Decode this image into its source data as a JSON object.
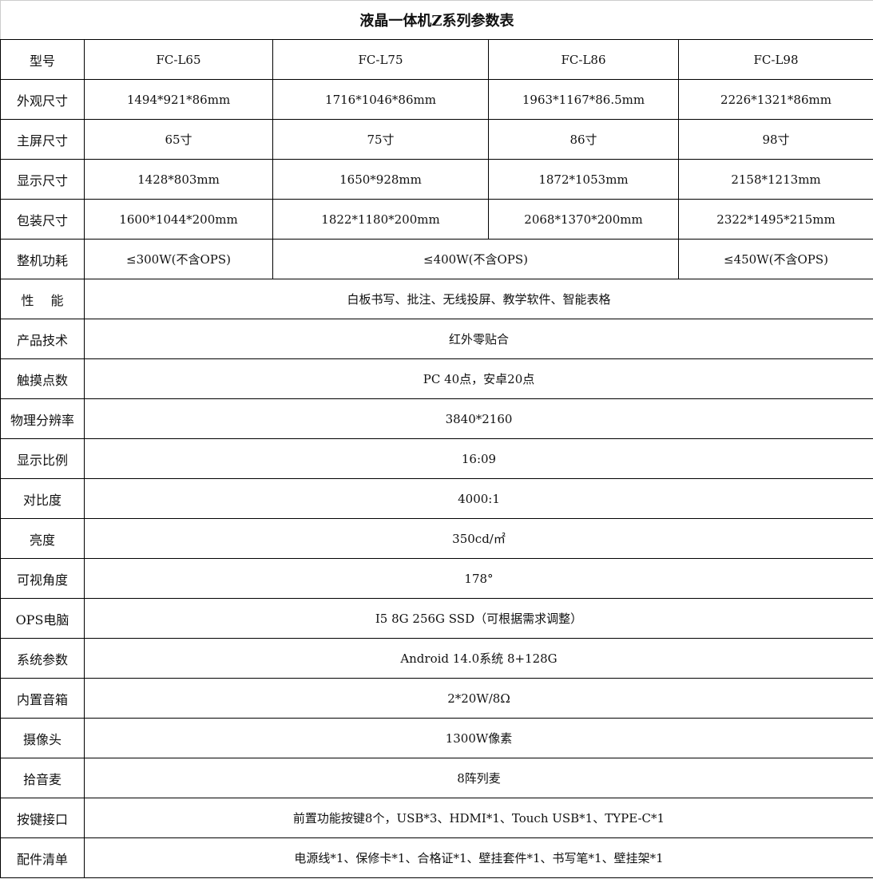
{
  "title": "液晶一体机Z系列参数表",
  "header": {
    "label": "型号",
    "models": [
      "FC-L65",
      "FC-L75",
      "FC-L86",
      "FC-L98"
    ]
  },
  "rows_by_model": [
    {
      "label": "外观尺寸",
      "values": [
        "1494*921*86mm",
        "1716*1046*86mm",
        "1963*1167*86.5mm",
        "2226*1321*86mm"
      ]
    },
    {
      "label": "主屏尺寸",
      "values": [
        "65寸",
        "75寸",
        "86寸",
        "98寸"
      ]
    },
    {
      "label": "显示尺寸",
      "values": [
        "1428*803mm",
        "1650*928mm",
        "1872*1053mm",
        "2158*1213mm"
      ]
    },
    {
      "label": "包装尺寸",
      "values": [
        "1600*1044*200mm",
        "1822*1180*200mm",
        "2068*1370*200mm",
        "2322*1495*215mm"
      ]
    }
  ],
  "power": {
    "label": "整机功耗",
    "l65": "≤300W(不含OPS)",
    "l75_l86": "≤400W(不含OPS)",
    "l98": "≤450W(不含OPS)"
  },
  "rows_shared": [
    {
      "label": "性　 能",
      "value": "白板书写、批注、无线投屏、教学软件、智能表格"
    },
    {
      "label": "产品技术",
      "value": "红外零贴合"
    },
    {
      "label": "触摸点数",
      "value": "PC 40点，安卓20点"
    },
    {
      "label": "物理分辨率",
      "value": "3840*2160"
    },
    {
      "label": "显示比例",
      "value": "16:09"
    },
    {
      "label": "对比度",
      "value": "4000:1"
    },
    {
      "label": "亮度",
      "value": "350cd/㎡"
    },
    {
      "label": "可视角度",
      "value": "178°"
    },
    {
      "label": "OPS电脑",
      "value": "I5 8G 256G SSD（可根据需求调整）"
    },
    {
      "label": "系统参数",
      "value": "Android 14.0系统 8+128G"
    },
    {
      "label": "内置音箱",
      "value": "2*20W/8Ω"
    },
    {
      "label": "摄像头",
      "value": "1300W像素"
    },
    {
      "label": "拾音麦",
      "value": "8阵列麦"
    },
    {
      "label": "按键接口",
      "value": "前置功能按键8个，USB*3、HDMI*1、Touch USB*1、TYPE-C*1"
    },
    {
      "label": "配件清单",
      "value": "电源线*1、保修卡*1、合格证*1、壁挂套件*1、书写笔*1、壁挂架*1"
    }
  ]
}
